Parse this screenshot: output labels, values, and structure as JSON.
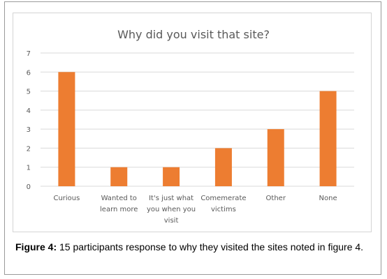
{
  "chart_data": {
    "type": "bar",
    "title": "Why did you visit that site?",
    "categories": [
      [
        "Curious"
      ],
      [
        "Wanted to",
        "learn more"
      ],
      [
        "It's just what",
        "you when you",
        "visit"
      ],
      [
        "Comemerate",
        "victims"
      ],
      [
        "Other"
      ],
      [
        "None"
      ]
    ],
    "values": [
      6,
      1,
      1,
      2,
      3,
      5
    ],
    "yticks": [
      "0",
      "1",
      "2",
      "3",
      "4",
      "5",
      "6",
      "7"
    ],
    "ylim": [
      0,
      7
    ],
    "xlabel": "",
    "ylabel": "",
    "grid": true,
    "legend": "none",
    "colors": {
      "bar": "#ed7d31",
      "grid": "#d9d9d9",
      "text": "#595959"
    }
  },
  "caption": {
    "label": "Figure 4:",
    "text": " 15 participants response to why they visited the sites noted in figure 4."
  }
}
